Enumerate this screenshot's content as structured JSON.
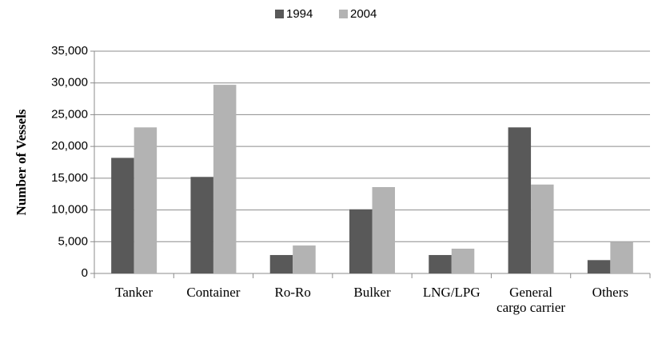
{
  "chart_data": {
    "type": "bar",
    "y_label": "Number of Vessels",
    "categories": [
      "Tanker",
      "Container",
      "Ro-Ro",
      "Bulker",
      "LNG/LPG",
      "General cargo carrier",
      "Others"
    ],
    "series": [
      {
        "name": "1994",
        "color": "#595959",
        "values": [
          18200,
          15200,
          2900,
          10100,
          2900,
          23000,
          2100
        ]
      },
      {
        "name": "2004",
        "color": "#b3b3b3",
        "values": [
          23000,
          29700,
          4400,
          13600,
          3900,
          14000,
          5000
        ]
      }
    ],
    "ylim": [
      0,
      35000
    ],
    "yticks": [
      0,
      {
        "value": 5000,
        "label": "5,000"
      },
      {
        "value": 10000,
        "label": "10,000"
      },
      {
        "value": 15000,
        "label": "15,000"
      },
      {
        "value": 20000,
        "label": "20,000"
      },
      {
        "value": 25000,
        "label": "25,000"
      },
      {
        "value": 30000,
        "label": "30,000"
      },
      {
        "value": 35000,
        "label": "35,000"
      }
    ],
    "grid": true,
    "legend": "top"
  }
}
